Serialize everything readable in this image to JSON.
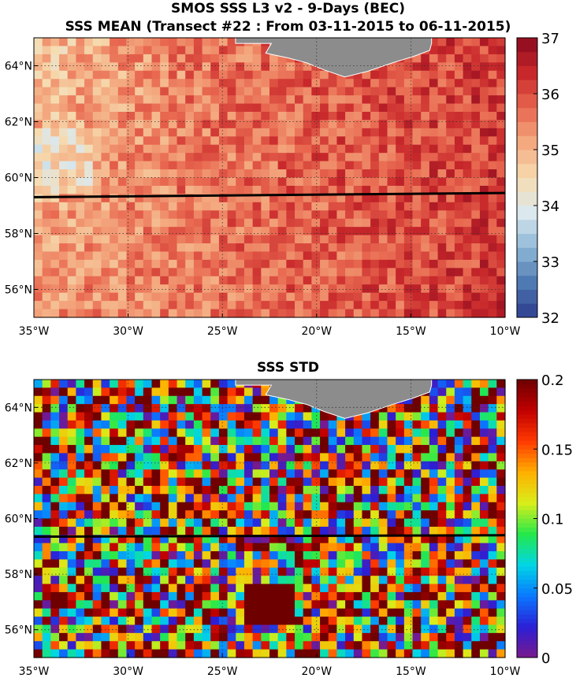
{
  "chart_data": [
    {
      "type": "heatmap",
      "title": "SMOS SSS L3 v2 - 9-Days (BEC)",
      "subtitle": "SSS MEAN (Transect #22 : From 03-11-2015 to 06-11-2015)",
      "xlim": [
        -35,
        -10
      ],
      "ylim": [
        55,
        65
      ],
      "x_ticks": [
        -35,
        -30,
        -25,
        -20,
        -15,
        -10
      ],
      "x_tick_labels": [
        "35°W",
        "30°W",
        "25°W",
        "20°W",
        "15°W",
        "10°W"
      ],
      "y_ticks": [
        56,
        58,
        60,
        62,
        64
      ],
      "y_tick_labels": [
        "56°N",
        "58°N",
        "60°N",
        "62°N",
        "64°N"
      ],
      "colorbar": {
        "range": [
          32,
          37
        ],
        "ticks": [
          32,
          33,
          34,
          35,
          36,
          37
        ],
        "tick_labels": [
          "32",
          "33",
          "34",
          "35",
          "36",
          "37"
        ],
        "colormap": "red-blue diverging (high salinity red, low salinity blue)",
        "colors": [
          "#2c3d8f",
          "#4f79b2",
          "#8fb8d8",
          "#dbe8ee",
          "#f6dcb0",
          "#f4a97f",
          "#e8674f",
          "#c8282b",
          "#8b0a1e"
        ]
      },
      "grid": "dotted",
      "transect": {
        "from": [
          -35,
          59.3
        ],
        "to": [
          -10,
          59.45
        ],
        "color": "#000000"
      },
      "land_color": "#8c8c8c",
      "field_summary": "values mostly 34.5–36.5; fresher (~34) in north-west corner, saltier (~36) east of 25°W and north of 59°N"
    },
    {
      "type": "heatmap",
      "title": "SSS STD",
      "xlim": [
        -35,
        -10
      ],
      "ylim": [
        55,
        65
      ],
      "x_ticks": [
        -35,
        -30,
        -25,
        -20,
        -15,
        -10
      ],
      "x_tick_labels": [
        "35°W",
        "30°W",
        "25°W",
        "20°W",
        "15°W",
        "10°W"
      ],
      "y_ticks": [
        56,
        58,
        60,
        62,
        64
      ],
      "y_tick_labels": [
        "56°N",
        "58°N",
        "60°N",
        "62°N",
        "64°N"
      ],
      "colorbar": {
        "range": [
          0,
          0.2
        ],
        "ticks": [
          0,
          0.05,
          0.1,
          0.15,
          0.2
        ],
        "tick_labels": [
          "0",
          "0.05",
          "0.1",
          "0.15",
          "0.2"
        ],
        "colormap": "jet",
        "colors": [
          "#7a1a8c",
          "#2b1fd6",
          "#0a78ff",
          "#00d6e6",
          "#24e84a",
          "#d8ee1a",
          "#ffb000",
          "#ff3a00",
          "#c20000",
          "#6e0000"
        ]
      },
      "grid": "dotted",
      "transect": {
        "from": [
          -35,
          59.35
        ],
        "to": [
          -10,
          59.4
        ],
        "color": "#000000"
      },
      "land_color": "#8c8c8c",
      "field_summary": "highly variable noise across 0–0.2, with saturated (≥0.2) patch near 23°W, 57°N"
    }
  ]
}
